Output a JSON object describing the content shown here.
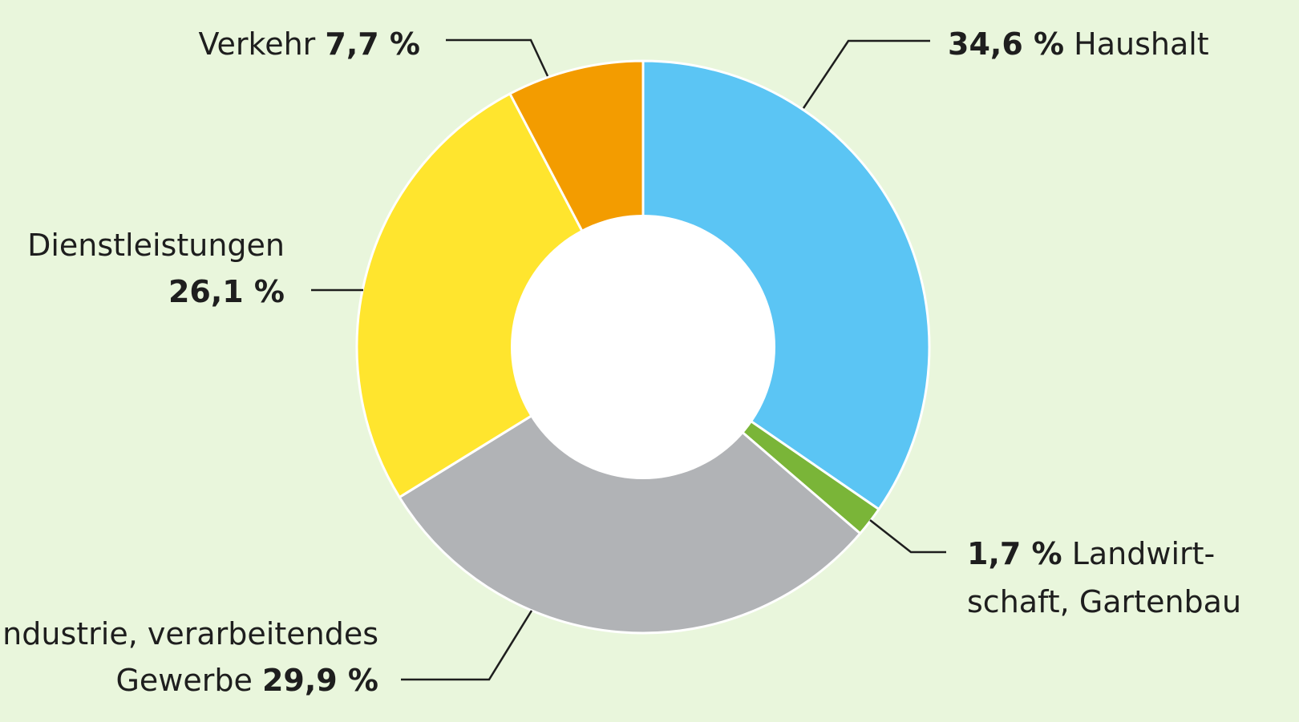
{
  "chart_data": {
    "type": "pie",
    "variant": "donut",
    "categories": [
      "Haushalt",
      "Landwirtschaft, Gartenbau",
      "Industrie, verarbeitendes Gewerbe",
      "Dienstleistungen",
      "Verkehr"
    ],
    "values": [
      34.6,
      1.7,
      29.9,
      26.1,
      7.7
    ],
    "unit": "%",
    "colors": [
      "#5bc5f4",
      "#7ab538",
      "#b1b3b6",
      "#ffe52e",
      "#f39c00"
    ],
    "labels": [
      {
        "lines": [
          [
            {
              "t": "34,6 %",
              "b": true
            },
            {
              "t": " Haushalt",
              "b": false
            }
          ]
        ]
      },
      {
        "lines": [
          [
            {
              "t": "1,7 %",
              "b": true
            },
            {
              "t": " Landwirt-",
              "b": false
            }
          ],
          [
            {
              "t": "schaft, Gartenbau",
              "b": false
            }
          ]
        ]
      },
      {
        "lines": [
          [
            {
              "t": "Industrie, verarbeitendes",
              "b": false
            }
          ],
          [
            {
              "t": "Gewerbe ",
              "b": false
            },
            {
              "t": "29,9 %",
              "b": true
            }
          ]
        ]
      },
      {
        "lines": [
          [
            {
              "t": "Dienstleistungen",
              "b": false
            }
          ],
          [
            {
              "t": "26,1 %",
              "b": true
            }
          ]
        ]
      },
      {
        "lines": [
          [
            {
              "t": "Verkehr ",
              "b": false
            },
            {
              "t": "7,7 %",
              "b": true
            }
          ]
        ]
      }
    ]
  }
}
